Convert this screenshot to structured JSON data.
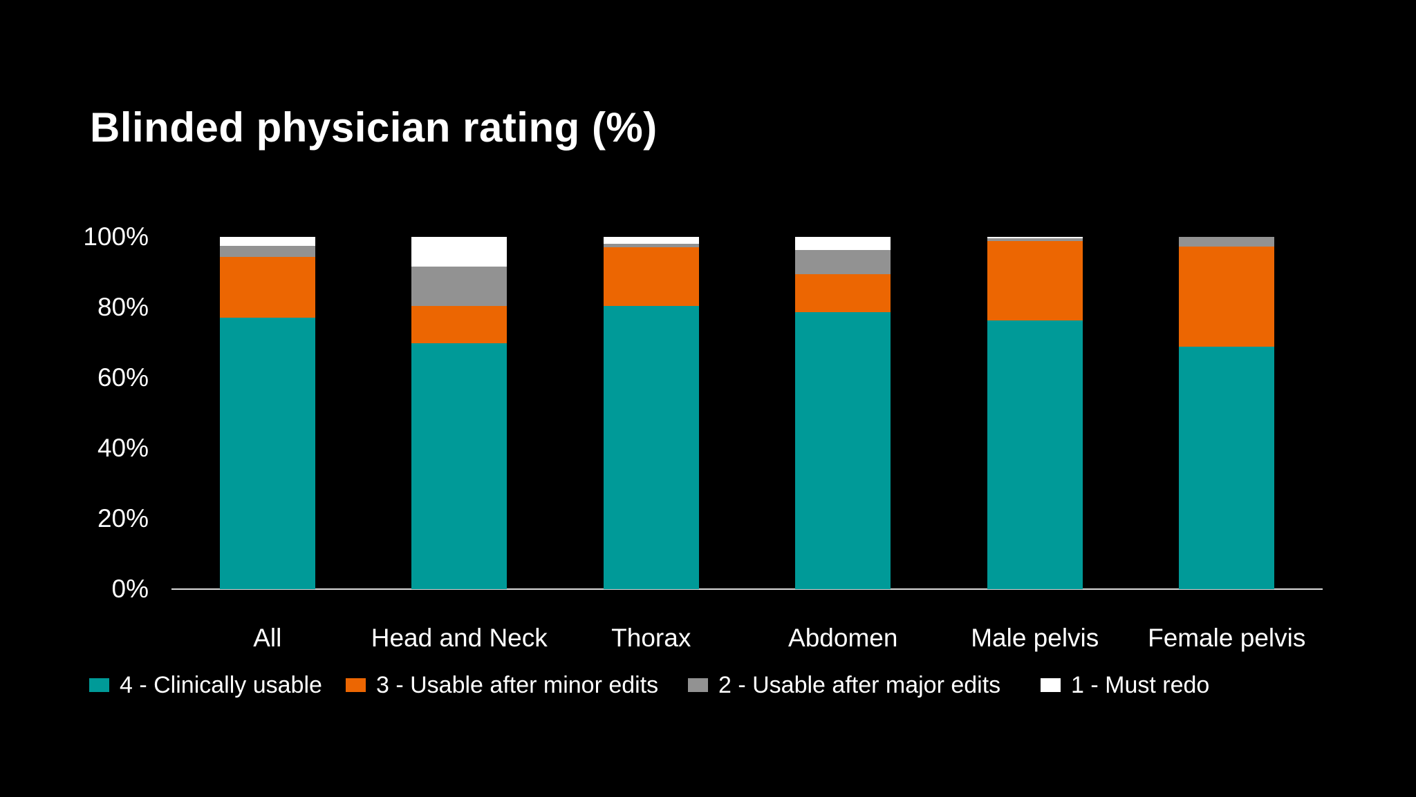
{
  "title": "Blinded physician rating (%)",
  "colors": {
    "background": "#000000",
    "text": "#FFFFFF",
    "axis_line": "#DCDCDC",
    "teal": "#009A98",
    "orange": "#EC6602",
    "gray": "#929292",
    "white": "#FFFFFF"
  },
  "chart_data": {
    "type": "bar",
    "stacked": true,
    "title": "Blinded physician rating (%)",
    "xlabel": "",
    "ylabel": "",
    "ylim": [
      0,
      100
    ],
    "yticks": [
      "0%",
      "20%",
      "40%",
      "60%",
      "80%",
      "100%"
    ],
    "ytick_values": [
      0,
      20,
      40,
      60,
      80,
      100
    ],
    "grid": false,
    "legend_position": "bottom",
    "categories": [
      "All",
      "Head and Neck",
      "Thorax",
      "Abdomen",
      "Male pelvis",
      "Female pelvis"
    ],
    "series": [
      {
        "name": "4 - Clinically usable",
        "color": "#009A98",
        "values": [
          77.0,
          69.8,
          80.4,
          78.6,
          76.2,
          68.8
        ]
      },
      {
        "name": "3 - Usable after minor edits",
        "color": "#EC6602",
        "values": [
          17.4,
          10.5,
          16.7,
          10.8,
          22.6,
          28.4
        ]
      },
      {
        "name": "2 - Usable after major edits",
        "color": "#929292",
        "values": [
          3.0,
          11.3,
          0.9,
          6.8,
          0.8,
          2.8
        ]
      },
      {
        "name": "1 - Must redo",
        "color": "#FFFFFF",
        "values": [
          2.6,
          8.4,
          2.0,
          3.8,
          0.4,
          0.0
        ]
      }
    ]
  }
}
